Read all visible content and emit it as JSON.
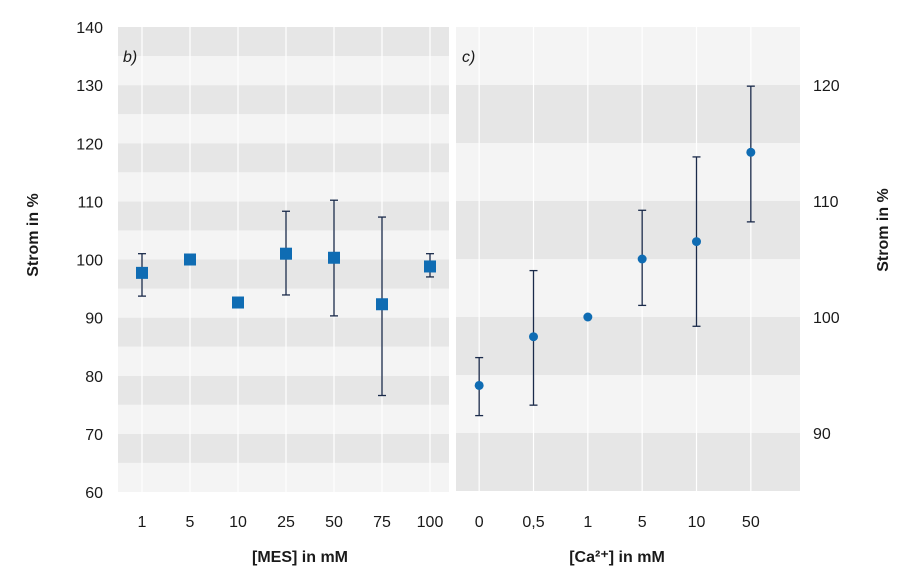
{
  "chart_data": [
    {
      "panel": "b)",
      "type": "scatter",
      "marker": "square",
      "xlabel": "[MES] in mM",
      "ylabel": "Strom in %",
      "categories": [
        "1",
        "5",
        "10",
        "25",
        "50",
        "75",
        "100"
      ],
      "values": [
        97.7,
        100.0,
        92.6,
        101.0,
        100.3,
        92.3,
        98.8
      ],
      "err_low": [
        93.7,
        100.0,
        92.6,
        93.9,
        90.3,
        76.6,
        97.0
      ],
      "err_high": [
        101.0,
        100.0,
        92.6,
        108.3,
        110.2,
        107.3,
        101.0
      ],
      "ylim": [
        60,
        140
      ],
      "yticks": [
        60,
        70,
        80,
        90,
        100,
        110,
        120,
        130,
        140
      ],
      "y_axis_side": "left",
      "marker_color": "#0f6cb3",
      "errorbar_color": "#1a2a4a",
      "grid": "alternating horizontal bands"
    },
    {
      "panel": "c)",
      "type": "scatter",
      "marker": "circle",
      "xlabel": "[Ca²⁺] in mM",
      "ylabel": "Strom in %",
      "categories": [
        "0",
        "0,5",
        "1",
        "5",
        "10",
        "50"
      ],
      "values": [
        94.1,
        98.3,
        100.0,
        105.0,
        106.5,
        114.2
      ],
      "err_low": [
        91.5,
        92.4,
        100.0,
        101.0,
        99.2,
        108.2
      ],
      "err_high": [
        96.5,
        104.0,
        100.0,
        109.2,
        113.8,
        119.9
      ],
      "ylim": [
        85,
        125
      ],
      "yticks": [
        90,
        100,
        110,
        120
      ],
      "y_axis_side": "right",
      "marker_color": "#0f6cb3",
      "errorbar_color": "#1a2a4a",
      "grid": "alternating horizontal bands"
    }
  ],
  "colors": {
    "band_dark": "#e6e6e6",
    "band_light": "#f4f4f4",
    "divider": "#ffffff"
  }
}
